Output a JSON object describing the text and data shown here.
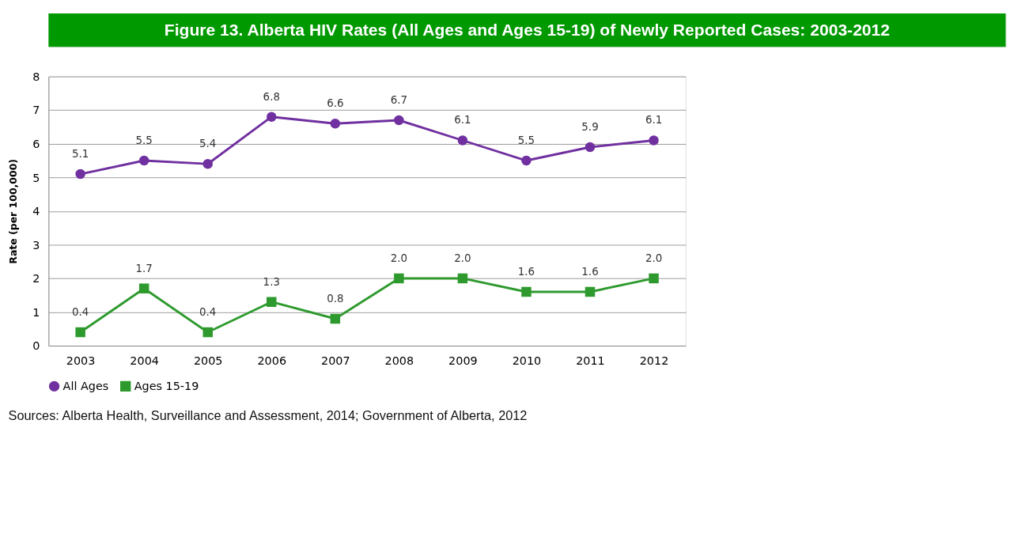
{
  "chart_data": {
    "type": "line",
    "title": "Figure 13. Alberta HIV Rates (All Ages and Ages 15-19) of Newly Reported Cases: 2003-2012",
    "ylabel": "Rate (per 100,000)",
    "categories": [
      "2003",
      "2004",
      "2005",
      "2006",
      "2007",
      "2008",
      "2009",
      "2010",
      "2011",
      "2012"
    ],
    "series": [
      {
        "name": "All Ages",
        "color": "#7030a0",
        "marker": "circle",
        "values": [
          5.1,
          5.5,
          5.4,
          6.8,
          6.6,
          6.7,
          6.1,
          5.5,
          5.9,
          6.1
        ],
        "value_labels": [
          "5.1",
          "5.5",
          "5.4",
          "6.8",
          "6.6",
          "6.7",
          "6.1",
          "5.5",
          "5.9",
          "6.1"
        ]
      },
      {
        "name": "Ages 15-19",
        "color": "#2e9a2e",
        "marker": "square",
        "values": [
          0.4,
          1.7,
          0.4,
          1.3,
          0.8,
          2.0,
          2.0,
          1.6,
          1.6,
          2.0
        ],
        "value_labels": [
          "0.4",
          "1.7",
          "0.4",
          "1.3",
          "0.8",
          "2.0",
          "2.0",
          "1.6",
          "1.6",
          "2.0"
        ]
      }
    ],
    "ylim": [
      0,
      8
    ],
    "yticks": [
      0,
      1,
      2,
      3,
      4,
      5,
      6,
      7,
      8
    ],
    "grid": "y",
    "legend": "bottom",
    "line_style": "solid",
    "annotations": [
      "Sources: Alberta Health, Surveillance and Assessment, 2014; Government of Alberta, 2012"
    ]
  }
}
